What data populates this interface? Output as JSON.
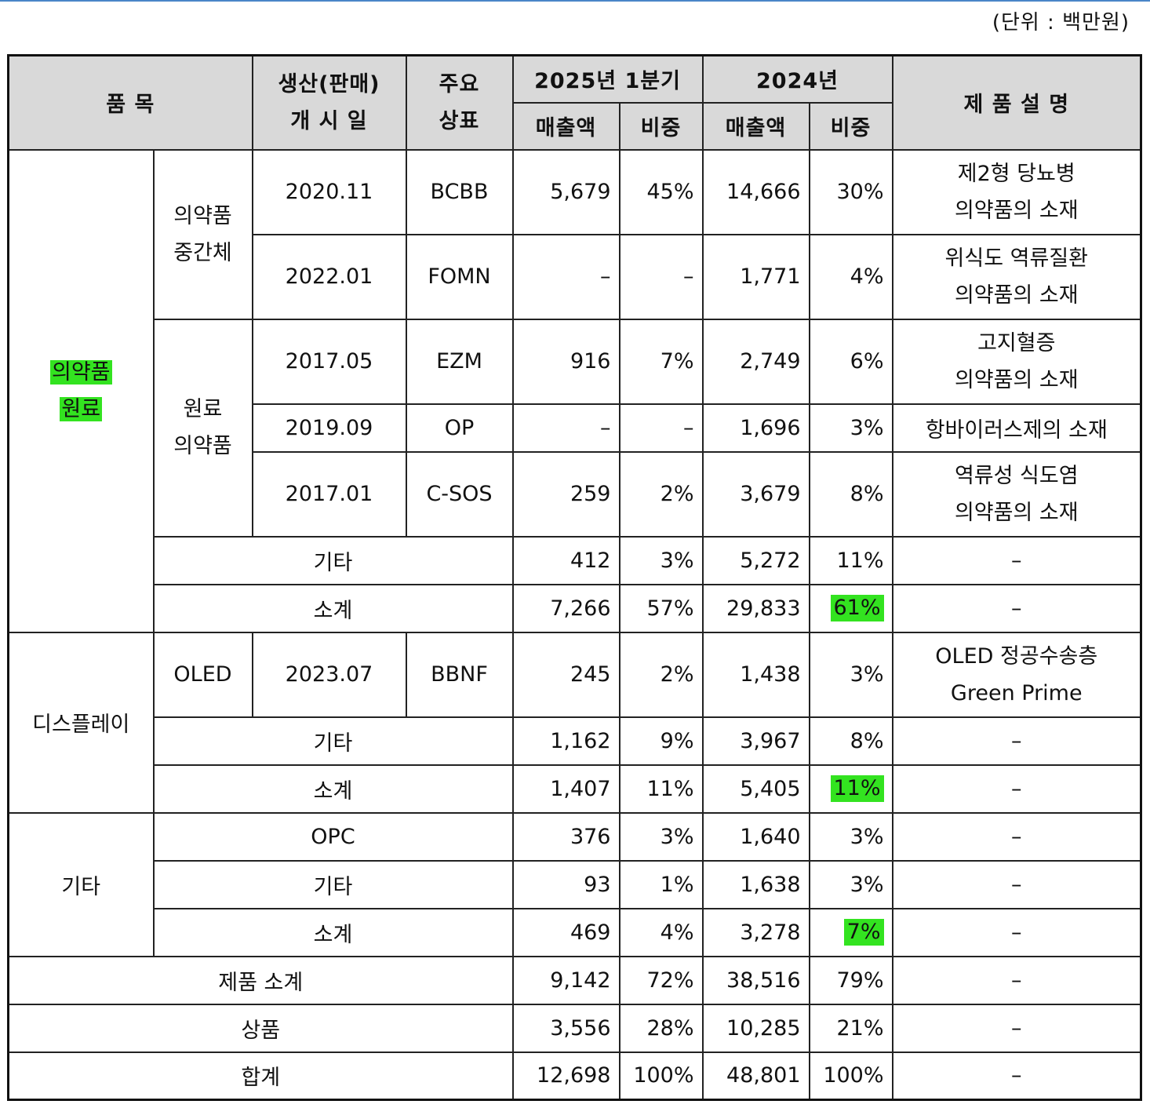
{
  "unit_label": "(단위 : 백만원)",
  "header": {
    "item": "품 목",
    "start_date": [
      "생산(판매)",
      "개 시 일"
    ],
    "brand": [
      "주요",
      "상표"
    ],
    "period1": "2025년 1분기",
    "period2": "2024년",
    "sales": "매출액",
    "share": "비중",
    "description": "제 품 설 명"
  },
  "pharma": {
    "category": [
      "의약품",
      "원료"
    ],
    "intermediate_label": [
      "의약품",
      "중간체"
    ],
    "api_label": [
      "원료",
      "의약품"
    ],
    "rows": [
      {
        "date": "2020.11",
        "brand": "BCBB",
        "q_sales": "5,679",
        "q_share": "45%",
        "y_sales": "14,666",
        "y_share": "30%",
        "desc": [
          "제2형 당뇨병",
          "의약품의 소재"
        ]
      },
      {
        "date": "2022.01",
        "brand": "FOMN",
        "q_sales": "–",
        "q_share": "–",
        "y_sales": "1,771",
        "y_share": "4%",
        "desc": [
          "위식도 역류질환",
          "의약품의 소재"
        ]
      },
      {
        "date": "2017.05",
        "brand": "EZM",
        "q_sales": "916",
        "q_share": "7%",
        "y_sales": "2,749",
        "y_share": "6%",
        "desc": [
          "고지혈증",
          "의약품의 소재"
        ]
      },
      {
        "date": "2019.09",
        "brand": "OP",
        "q_sales": "–",
        "q_share": "–",
        "y_sales": "1,696",
        "y_share": "3%",
        "desc": [
          "항바이러스제의 소재"
        ]
      },
      {
        "date": "2017.01",
        "brand": "C-SOS",
        "q_sales": "259",
        "q_share": "2%",
        "y_sales": "3,679",
        "y_share": "8%",
        "desc": [
          "역류성 식도염",
          "의약품의 소재"
        ]
      }
    ],
    "other": {
      "label": "기타",
      "q_sales": "412",
      "q_share": "3%",
      "y_sales": "5,272",
      "y_share": "11%",
      "desc": "–"
    },
    "subtotal": {
      "label": "소계",
      "q_sales": "7,266",
      "q_share": "57%",
      "y_sales": "29,833",
      "y_share": "61%",
      "desc": "–"
    }
  },
  "display": {
    "category": "디스플레이",
    "row": {
      "sub": "OLED",
      "date": "2023.07",
      "brand": "BBNF",
      "q_sales": "245",
      "q_share": "2%",
      "y_sales": "1,438",
      "y_share": "3%",
      "desc": [
        "OLED 정공수송층",
        "Green Prime"
      ]
    },
    "other": {
      "label": "기타",
      "q_sales": "1,162",
      "q_share": "9%",
      "y_sales": "3,967",
      "y_share": "8%",
      "desc": "–"
    },
    "subtotal": {
      "label": "소계",
      "q_sales": "1,407",
      "q_share": "11%",
      "y_sales": "5,405",
      "y_share": "11%",
      "desc": "–"
    }
  },
  "etc": {
    "category": "기타",
    "opc": {
      "label": "OPC",
      "q_sales": "376",
      "q_share": "3%",
      "y_sales": "1,640",
      "y_share": "3%",
      "desc": "–"
    },
    "other": {
      "label": "기타",
      "q_sales": "93",
      "q_share": "1%",
      "y_sales": "1,638",
      "y_share": "3%",
      "desc": "–"
    },
    "subtotal": {
      "label": "소계",
      "q_sales": "469",
      "q_share": "4%",
      "y_sales": "3,278",
      "y_share": "7%",
      "desc": "–"
    }
  },
  "product_subtotal": {
    "label": "제품 소계",
    "q_sales": "9,142",
    "q_share": "72%",
    "y_sales": "38,516",
    "y_share": "79%",
    "desc": "–"
  },
  "merchandise": {
    "label": "상품",
    "q_sales": "3,556",
    "q_share": "28%",
    "y_sales": "10,285",
    "y_share": "21%",
    "desc": "–"
  },
  "total": {
    "label": "합계",
    "q_sales": "12,698",
    "q_share": "100%",
    "y_sales": "48,801",
    "y_share": "100%",
    "desc": "–"
  },
  "highlight_color": "#33e320",
  "border_accent_color": "#4a86c8"
}
